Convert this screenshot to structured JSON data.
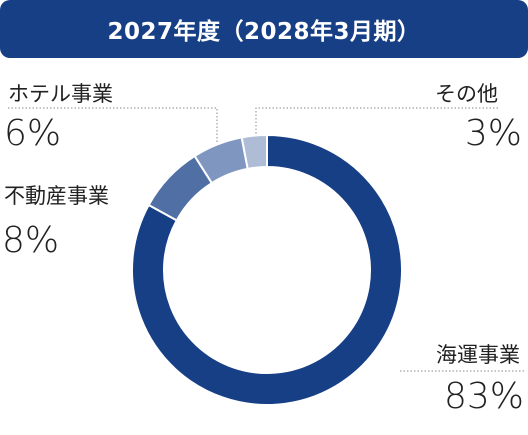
{
  "header": {
    "title": "2027年度（2028年3月期）"
  },
  "chart_data": {
    "type": "pie",
    "title": "2027年度（2028年3月期）",
    "categories": [
      "海運事業",
      "不動産事業",
      "ホテル事業",
      "その他"
    ],
    "values": [
      83,
      8,
      6,
      3
    ],
    "value_labels": [
      "83%",
      "8%",
      "6%",
      "3%"
    ],
    "colors": [
      "#173f86",
      "#4f6fa5",
      "#7f97c0",
      "#aebcd6"
    ],
    "donut": true
  }
}
